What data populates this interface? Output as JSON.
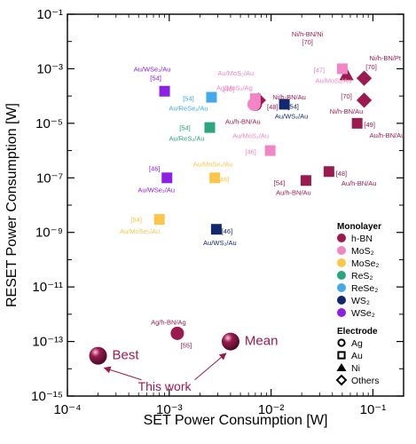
{
  "chart_data": {
    "type": "scatter",
    "title": "",
    "xlabel": "SET Power Consumption  [W]",
    "ylabel": "RESET Power Consumption  [W]",
    "x_scale": "log",
    "y_scale": "log",
    "xlim": [
      0.0001,
      0.2
    ],
    "ylim": [
      1e-15,
      0.1
    ],
    "x_ticks": [
      {
        "value": 0.0001,
        "label": "10⁻⁴"
      },
      {
        "value": 0.001,
        "label": "10⁻³"
      },
      {
        "value": 0.01,
        "label": "10⁻²"
      },
      {
        "value": 0.1,
        "label": "10⁻¹"
      }
    ],
    "y_ticks": [
      {
        "value": 1e-15,
        "label": "10⁻¹⁵"
      },
      {
        "value": 1e-13,
        "label": "10⁻¹³"
      },
      {
        "value": 1e-11,
        "label": "10⁻¹¹"
      },
      {
        "value": 1e-09,
        "label": "10⁻⁹"
      },
      {
        "value": 1e-07,
        "label": "10⁻⁷"
      },
      {
        "value": 1e-05,
        "label": "10⁻⁵"
      },
      {
        "value": 0.001,
        "label": "10⁻³"
      },
      {
        "value": 0.1,
        "label": "10⁻¹"
      }
    ],
    "grid": false,
    "materials": {
      "h-BN": "#9b1b50",
      "MoS2": "#f087c4",
      "MoSe2": "#fcc64b",
      "ReS2": "#2aa57c",
      "ReSe2": "#45a8e8",
      "WS2": "#11286e",
      "WSe2": "#8c21e3"
    },
    "points": [
      {
        "x": 0.055,
        "y": 0.0006,
        "material": "h-BN",
        "marker": "triangle",
        "label": "Ni/h-BN/Ni",
        "ref": "[70]"
      },
      {
        "x": 0.082,
        "y": 0.00045,
        "material": "h-BN",
        "marker": "diamond",
        "label": "Ni/h-BN/Pt",
        "ref": "[70]"
      },
      {
        "x": 0.082,
        "y": 7e-05,
        "material": "h-BN",
        "marker": "diamond",
        "label": "Ni/h-BN/Au",
        "ref": "[70]"
      },
      {
        "x": 0.0075,
        "y": 7e-05,
        "material": "h-BN",
        "marker": "diamond",
        "label": "Ni/h-BN/Au",
        "ref": "[48]"
      },
      {
        "x": 0.007,
        "y": 5e-05,
        "material": "h-BN",
        "marker": "circle",
        "label": "Au/h-BN/Au",
        "ref": ""
      },
      {
        "x": 0.07,
        "y": 1e-05,
        "material": "h-BN",
        "marker": "square",
        "label": "Au/h-BN/Au",
        "ref": "[49]"
      },
      {
        "x": 0.022,
        "y": 8e-08,
        "material": "h-BN",
        "marker": "square",
        "label": "Au/h-BN/Au",
        "ref": "[54]"
      },
      {
        "x": 0.037,
        "y": 1.7e-07,
        "material": "h-BN",
        "marker": "square",
        "label": "Au/h-BN/Au",
        "ref": "[48]"
      },
      {
        "x": 0.0012,
        "y": 2e-13,
        "material": "h-BN",
        "marker": "circle",
        "label": "Ag/h-BN/Ag",
        "ref": "[55]"
      },
      {
        "x": 0.05,
        "y": 0.001,
        "material": "MoS2",
        "marker": "square",
        "label": "Au/MoS₂/Au",
        "ref": "[47]"
      },
      {
        "x": 0.007,
        "y": 8e-05,
        "material": "MoS2",
        "marker": "square",
        "label": "Au/MoS₂/Au",
        "ref": "[46]"
      },
      {
        "x": 0.0068,
        "y": 5e-05,
        "material": "MoS2",
        "marker": "circle",
        "label": "Ag/MoS₂/Ag",
        "ref": ""
      },
      {
        "x": 0.0098,
        "y": 1e-06,
        "material": "MoS2",
        "marker": "square",
        "label": "Au/MoS₂/Au",
        "ref": "[46]"
      },
      {
        "x": 0.0028,
        "y": 1e-07,
        "material": "MoSe2",
        "marker": "square",
        "label": "Au/MoSe₂/Au",
        "ref": "[46]"
      },
      {
        "x": 0.0008,
        "y": 3e-09,
        "material": "MoSe2",
        "marker": "square",
        "label": "Au/MoSe₂/Au",
        "ref": "[54]"
      },
      {
        "x": 0.0025,
        "y": 7e-06,
        "material": "ReS2",
        "marker": "square",
        "label": "Au/ReS₂/Au",
        "ref": "[54]"
      },
      {
        "x": 0.0026,
        "y": 9e-05,
        "material": "ReSe2",
        "marker": "square",
        "label": "Au/ReSe₂/Au",
        "ref": "[54]"
      },
      {
        "x": 0.0135,
        "y": 5e-05,
        "material": "WS2",
        "marker": "square",
        "label": "Au/WS₂/Au",
        "ref": "[54]"
      },
      {
        "x": 0.0029,
        "y": 1.3e-09,
        "material": "WS2",
        "marker": "square",
        "label": "Au/WS₂/Au",
        "ref": "[46]"
      },
      {
        "x": 0.0009,
        "y": 0.00015,
        "material": "WSe2",
        "marker": "square",
        "label": "Au/WSe₂/Au",
        "ref": "[54]"
      },
      {
        "x": 0.00095,
        "y": 1e-07,
        "material": "WSe2",
        "marker": "square",
        "label": "Au/WSe₂/Au",
        "ref": "[46]"
      }
    ],
    "this_work": [
      {
        "x": 0.0002,
        "y": 3e-14,
        "label": "Best"
      },
      {
        "x": 0.004,
        "y": 1e-13,
        "label": "Mean"
      }
    ],
    "this_work_label": "This work",
    "this_work_color": "#9b1b50",
    "legend": {
      "position": "right",
      "monolayer_title": "Monolayer",
      "monolayer_items": [
        {
          "key": "h-BN",
          "label": "h-BN"
        },
        {
          "key": "MoS2",
          "label": "MoS₂"
        },
        {
          "key": "MoSe2",
          "label": "MoSe₂"
        },
        {
          "key": "ReS2",
          "label": "ReS₂"
        },
        {
          "key": "ReSe2",
          "label": "ReSe₂"
        },
        {
          "key": "WS2",
          "label": "WS₂"
        },
        {
          "key": "WSe2",
          "label": "WSe₂"
        }
      ],
      "electrode_title": "Electrode",
      "electrode_items": [
        {
          "marker": "circle",
          "label": "Ag"
        },
        {
          "marker": "square",
          "label": "Au"
        },
        {
          "marker": "triangle",
          "label": "Ni"
        },
        {
          "marker": "diamond",
          "label": "Others"
        }
      ]
    }
  }
}
